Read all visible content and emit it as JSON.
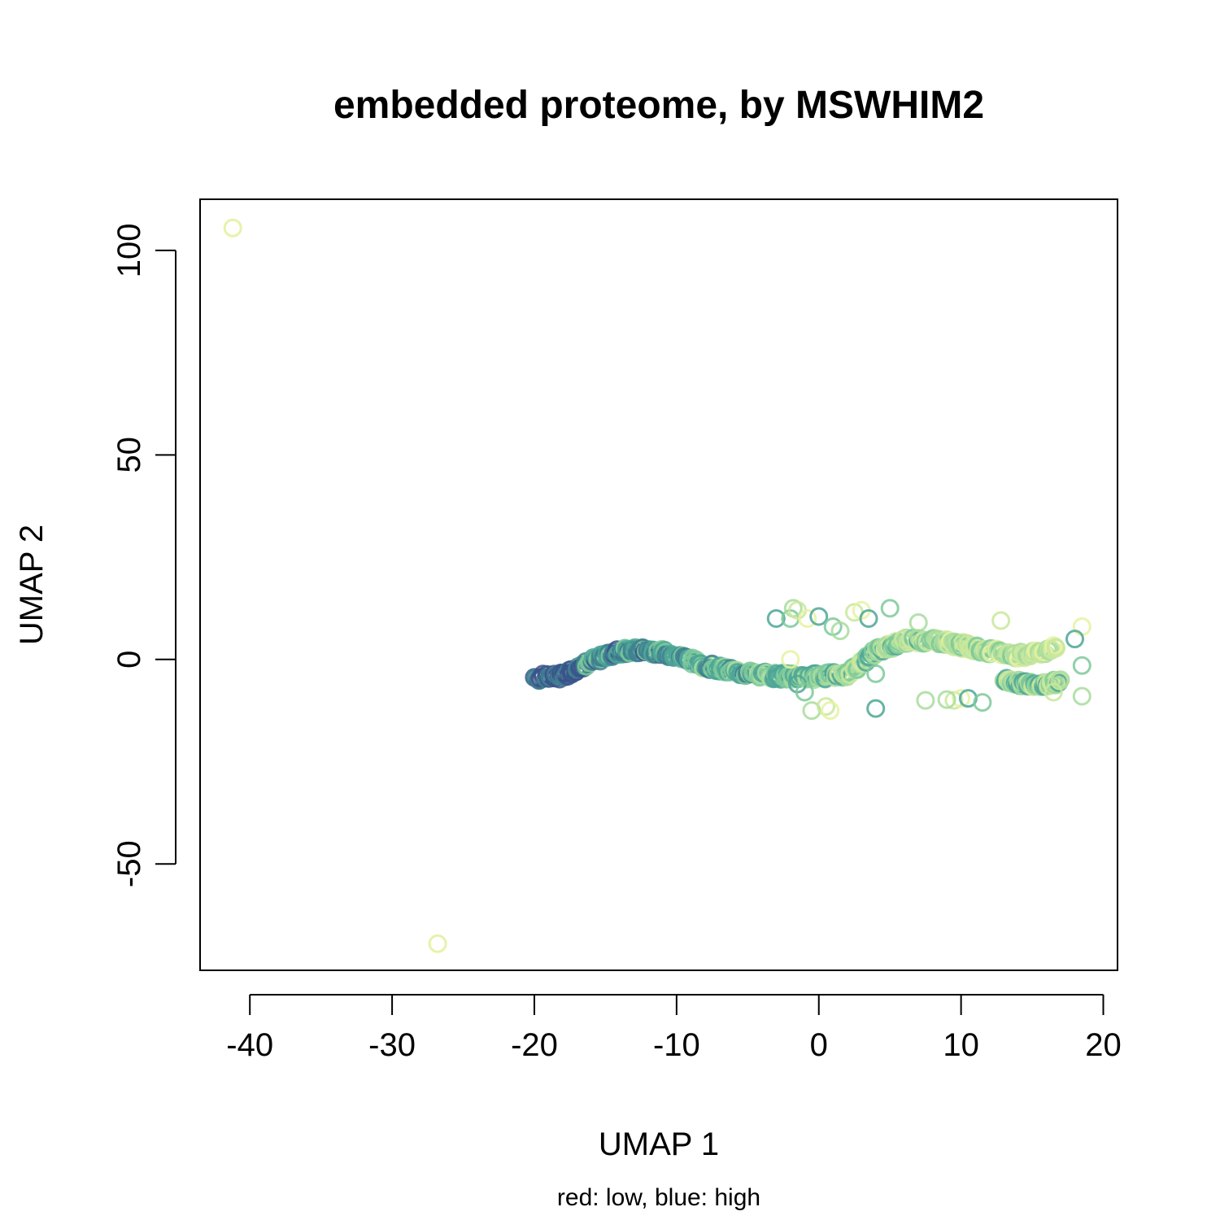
{
  "chart_data": {
    "type": "scatter",
    "title": "embedded proteome, by MSWHIM2",
    "xlabel": "UMAP 1",
    "ylabel": "UMAP 2",
    "subtitle": "red: low, blue: high",
    "xlim": [
      -43.5,
      21
    ],
    "ylim": [
      -76,
      112.5
    ],
    "xticks": [
      -40,
      -30,
      -20,
      -10,
      0,
      10,
      20
    ],
    "yticks": [
      -50,
      0,
      50,
      100
    ],
    "xtick_labels": [
      "-40",
      "-30",
      "-20",
      "-10",
      "0",
      "10",
      "20"
    ],
    "ytick_labels": [
      "-50",
      "0",
      "50",
      "100"
    ],
    "grid": false,
    "legend": "none",
    "marker": "open-circle",
    "colors": {
      "palette": [
        "#3b528b",
        "#3f7f91",
        "#4ea697",
        "#7cc99a",
        "#a8dc9e",
        "#c9e89c",
        "#e6f2a0"
      ],
      "outlier": "#e3f09a"
    },
    "outliers": [
      {
        "x": -41.2,
        "y": 105.5
      },
      {
        "x": -26.8,
        "y": -69.5
      }
    ],
    "main_curve": [
      {
        "x": -20,
        "y": -4.5
      },
      {
        "x": -18,
        "y": -4
      },
      {
        "x": -16,
        "y": -0.5
      },
      {
        "x": -14,
        "y": 2
      },
      {
        "x": -12,
        "y": 2.3
      },
      {
        "x": -10,
        "y": 1
      },
      {
        "x": -8,
        "y": -1.5
      },
      {
        "x": -6,
        "y": -3
      },
      {
        "x": -4,
        "y": -3.8
      },
      {
        "x": -2,
        "y": -4.2
      },
      {
        "x": 0,
        "y": -4.2
      },
      {
        "x": 2,
        "y": -3.5
      },
      {
        "x": 3,
        "y": -1
      },
      {
        "x": 4,
        "y": 2
      },
      {
        "x": 6,
        "y": 4.5
      },
      {
        "x": 8,
        "y": 4.8
      },
      {
        "x": 10,
        "y": 3.5
      },
      {
        "x": 12,
        "y": 2
      },
      {
        "x": 14,
        "y": 1
      },
      {
        "x": 16,
        "y": 2
      },
      {
        "x": 16.8,
        "y": 3
      }
    ],
    "lower_branch": [
      {
        "x": 13,
        "y": -5
      },
      {
        "x": 14.5,
        "y": -6
      },
      {
        "x": 16,
        "y": -6
      },
      {
        "x": 17,
        "y": -5.5
      }
    ],
    "scatter_points": [
      {
        "x": -3,
        "y": 10
      },
      {
        "x": -2,
        "y": 10
      },
      {
        "x": -1.8,
        "y": 12.5
      },
      {
        "x": -1.5,
        "y": 12
      },
      {
        "x": -0.8,
        "y": 10
      },
      {
        "x": 0,
        "y": 10.5
      },
      {
        "x": 1,
        "y": 8
      },
      {
        "x": 1.5,
        "y": 7
      },
      {
        "x": 2.5,
        "y": 11.5
      },
      {
        "x": 3,
        "y": 12
      },
      {
        "x": 3.5,
        "y": 10
      },
      {
        "x": 5,
        "y": 12.5
      },
      {
        "x": 7,
        "y": 9
      },
      {
        "x": 12.8,
        "y": 9.5
      },
      {
        "x": 18.5,
        "y": 8
      },
      {
        "x": 18,
        "y": 5
      },
      {
        "x": 18.5,
        "y": -1.5
      },
      {
        "x": 18.5,
        "y": -9
      },
      {
        "x": 16.5,
        "y": -8
      },
      {
        "x": -2,
        "y": 0
      },
      {
        "x": -1.5,
        "y": -6
      },
      {
        "x": -1,
        "y": -8
      },
      {
        "x": -0.5,
        "y": -12.5
      },
      {
        "x": 0.5,
        "y": -11.5
      },
      {
        "x": 0.8,
        "y": -12.5
      },
      {
        "x": 4,
        "y": -12
      },
      {
        "x": 4,
        "y": -3.5
      },
      {
        "x": 7.5,
        "y": -10
      },
      {
        "x": 9.5,
        "y": -10
      },
      {
        "x": 10,
        "y": -9.5
      },
      {
        "x": 10.5,
        "y": -9.5
      },
      {
        "x": 11.5,
        "y": -10.5
      },
      {
        "x": 9,
        "y": -9.8
      }
    ]
  }
}
